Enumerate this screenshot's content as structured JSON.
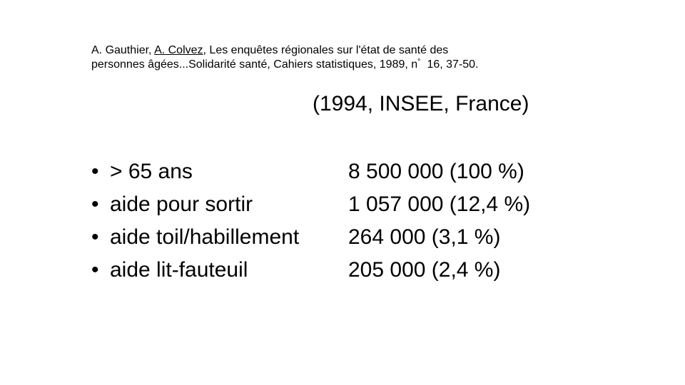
{
  "citation": {
    "author1": "A. Gauthier, ",
    "author2": "A. Colvez",
    "line1_rest": ", Les enquêtes régionales sur l'état de santé des",
    "line2_main": "personnes âgées...Solidarité santé, Cahiers statistiques, 1989, n",
    "degree_mark": "°",
    "line2_end": "  16, 37-50."
  },
  "subtitle": "(1994, INSEE, France)",
  "bullet_glyph": "•",
  "rows": [
    {
      "label": "> 65 ans",
      "value": "8 500 000 (100 %)"
    },
    {
      "label": "aide pour sortir",
      "value": "1 057 000 (12,4 %)"
    },
    {
      "label": "aide toil/habillement",
      "value": "264 000 (3,1 %)"
    },
    {
      "label": "aide lit-fauteuil",
      "value": "205 000 (2,4 %)"
    }
  ]
}
